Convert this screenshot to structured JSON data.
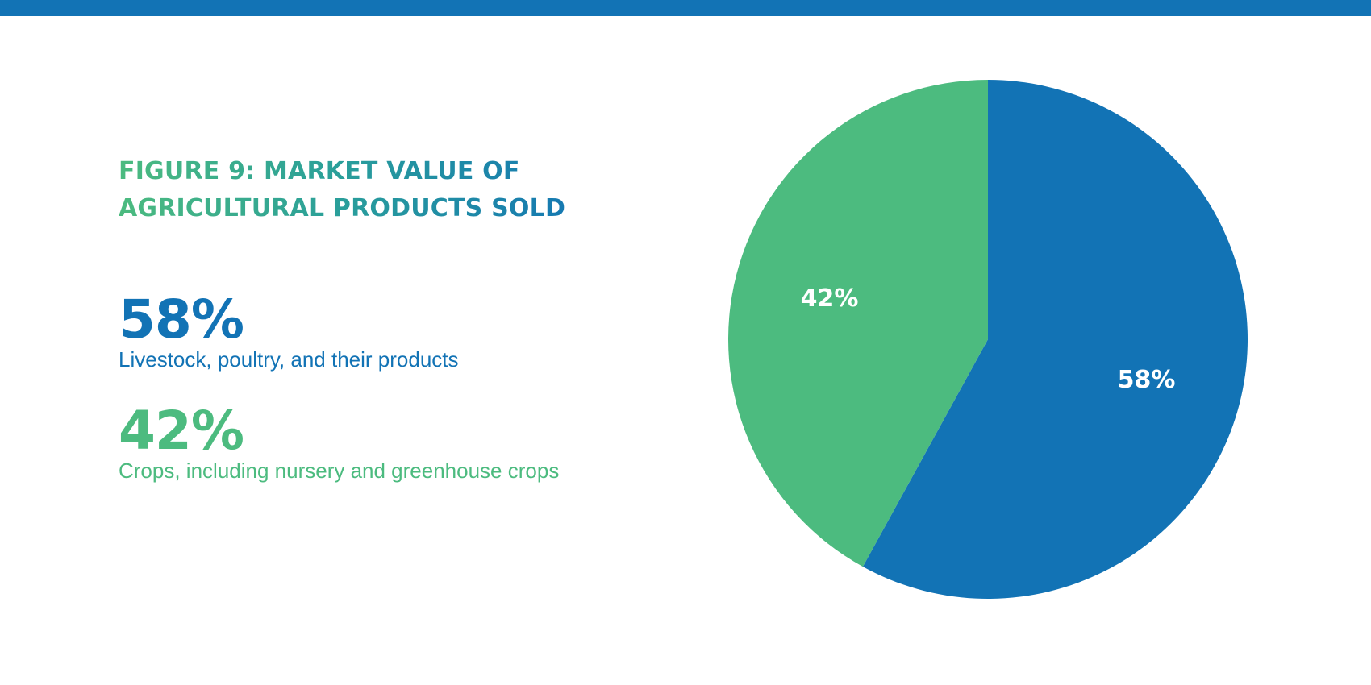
{
  "colors": {
    "blue": "#1273b5",
    "green": "#4cbb7f",
    "top_bar": "#1273b5",
    "label_text": "#ffffff"
  },
  "header": {
    "title_line1": "FIGURE 9: MARKET VALUE OF",
    "title_line2": "AGRICULTURAL PRODUCTS SOLD"
  },
  "legend": [
    {
      "value_text": "58%",
      "description": "Livestock, poultry, and their products",
      "color": "#1273b5"
    },
    {
      "value_text": "42%",
      "description": "Crops, including nursery and greenhouse crops",
      "color": "#4cbb7f"
    }
  ],
  "chart_data": {
    "type": "pie",
    "title": "FIGURE 9: MARKET VALUE OF AGRICULTURAL PRODUCTS SOLD",
    "slices": [
      {
        "label": "Livestock, poultry, and their products",
        "value": 58,
        "display": "58%",
        "color": "#1273b5"
      },
      {
        "label": "Crops, including nursery and greenhouse crops",
        "value": 42,
        "display": "42%",
        "color": "#4cbb7f"
      }
    ],
    "start_angle_deg": 0,
    "direction": "clockwise",
    "legend_position": "left"
  }
}
